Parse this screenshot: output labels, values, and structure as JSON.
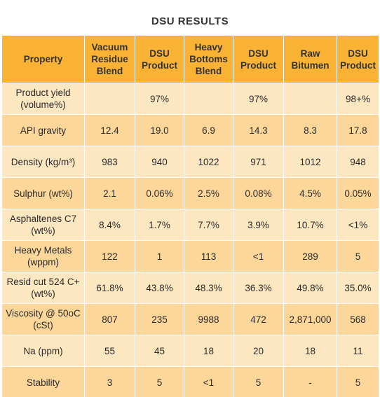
{
  "title": "DSU RESULTS",
  "headers": [
    "Property",
    "Vacuum Residue Blend",
    "DSU Product",
    "Heavy Bottoms Blend",
    "DSU Product",
    "Raw Bitumen",
    "DSU Product"
  ],
  "rows": [
    [
      "Product yield (volume%)",
      "",
      "97%",
      "",
      "97%",
      "",
      "98+%"
    ],
    [
      "API gravity",
      "12.4",
      "19.0",
      "6.9",
      "14.3",
      "8.3",
      "17.8"
    ],
    [
      "Density (kg/m³)",
      "983",
      "940",
      "1022",
      "971",
      "1012",
      "948"
    ],
    [
      "Sulphur (wt%)",
      "2.1",
      "0.06%",
      "2.5%",
      "0.08%",
      "4.5%",
      "0.05%"
    ],
    [
      "Asphaltenes C7 (wt%)",
      "8.4%",
      "1.7%",
      "7.7%",
      "3.9%",
      "10.7%",
      "<1%"
    ],
    [
      "Heavy Metals (wppm)",
      "122",
      "1",
      "113",
      "<1",
      "289",
      "5"
    ],
    [
      "Resid cut 524 C+ (wt%)",
      "61.8%",
      "43.8%",
      "48.3%",
      "36.3%",
      "49.8%",
      "35.0%"
    ],
    [
      "Viscosity @ 50oC (cSt)",
      "807",
      "235",
      "9988",
      "472",
      "2,871,000",
      "568"
    ],
    [
      "Na (ppm)",
      "55",
      "45",
      "18",
      "20",
      "18",
      "11"
    ],
    [
      "Stability",
      "3",
      "5",
      "<1",
      "5",
      "-",
      "5"
    ]
  ]
}
